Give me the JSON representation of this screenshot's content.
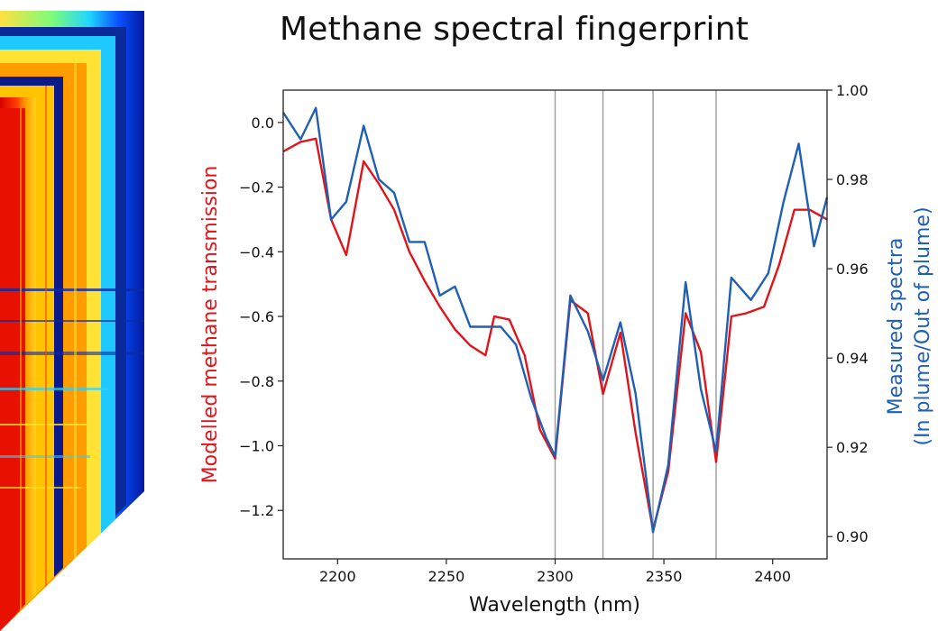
{
  "chart_data": {
    "type": "line",
    "title": "Methane spectral fingerprint",
    "xlabel": "Wavelength (nm)",
    "ylabel_left": "Modelled methane transmission",
    "ylabel_right_line1": "Measured spectra",
    "ylabel_right_line2": "(In plume/Out of plume)",
    "xlim": [
      2175,
      2425
    ],
    "ylim_left": [
      -1.35,
      0.1
    ],
    "ylim_right": [
      0.895,
      1.0
    ],
    "x_ticks": [
      2200,
      2250,
      2300,
      2350,
      2400
    ],
    "y_ticks_left": [
      0.0,
      -0.2,
      -0.4,
      -0.6,
      -0.8,
      -1.0,
      -1.2
    ],
    "y_ticks_left_labels": [
      "0.0",
      "−0.2",
      "−0.4",
      "−0.6",
      "−0.8",
      "−1.0",
      "−1.2"
    ],
    "y_ticks_right": [
      1.0,
      0.98,
      0.96,
      0.94,
      0.92,
      0.9
    ],
    "y_ticks_right_labels": [
      "1.00",
      "0.98",
      "0.96",
      "0.94",
      "0.92",
      "0.90"
    ],
    "vertical_lines": [
      2300,
      2322,
      2345,
      2374
    ],
    "grid": false,
    "series": [
      {
        "axis": "left",
        "color": "#e0151b",
        "points": [
          [
            2175,
            -0.09
          ],
          [
            2183,
            -0.06
          ],
          [
            2190,
            -0.05
          ],
          [
            2197,
            -0.3
          ],
          [
            2204,
            -0.41
          ],
          [
            2212,
            -0.12
          ],
          [
            2219,
            -0.19
          ],
          [
            2226,
            -0.27
          ],
          [
            2233,
            -0.4
          ],
          [
            2240,
            -0.49
          ],
          [
            2247,
            -0.57
          ],
          [
            2254,
            -0.64
          ],
          [
            2261,
            -0.69
          ],
          [
            2268,
            -0.72
          ],
          [
            2272,
            -0.6
          ],
          [
            2279,
            -0.61
          ],
          [
            2286,
            -0.72
          ],
          [
            2293,
            -0.95
          ],
          [
            2300,
            -1.04
          ],
          [
            2307,
            -0.55
          ],
          [
            2315,
            -0.59
          ],
          [
            2322,
            -0.84
          ],
          [
            2330,
            -0.65
          ],
          [
            2337,
            -0.96
          ],
          [
            2345,
            -1.26
          ],
          [
            2352,
            -1.08
          ],
          [
            2360,
            -0.59
          ],
          [
            2367,
            -0.71
          ],
          [
            2374,
            -1.05
          ],
          [
            2381,
            -0.6
          ],
          [
            2388,
            -0.59
          ],
          [
            2396,
            -0.57
          ],
          [
            2403,
            -0.44
          ],
          [
            2410,
            -0.27
          ],
          [
            2417,
            -0.27
          ],
          [
            2425,
            -0.3
          ]
        ]
      },
      {
        "axis": "right",
        "color": "#1f5fb4",
        "points": [
          [
            2175,
            0.995
          ],
          [
            2183,
            0.989
          ],
          [
            2190,
            0.996
          ],
          [
            2197,
            0.971
          ],
          [
            2204,
            0.975
          ],
          [
            2212,
            0.992
          ],
          [
            2219,
            0.98
          ],
          [
            2226,
            0.977
          ],
          [
            2233,
            0.966
          ],
          [
            2240,
            0.966
          ],
          [
            2247,
            0.954
          ],
          [
            2254,
            0.956
          ],
          [
            2261,
            0.947
          ],
          [
            2268,
            0.947
          ],
          [
            2275,
            0.947
          ],
          [
            2282,
            0.943
          ],
          [
            2289,
            0.931
          ],
          [
            2296,
            0.922
          ],
          [
            2300,
            0.918
          ],
          [
            2307,
            0.954
          ],
          [
            2315,
            0.946
          ],
          [
            2322,
            0.935
          ],
          [
            2330,
            0.948
          ],
          [
            2337,
            0.932
          ],
          [
            2345,
            0.901
          ],
          [
            2352,
            0.916
          ],
          [
            2360,
            0.957
          ],
          [
            2367,
            0.933
          ],
          [
            2374,
            0.919
          ],
          [
            2381,
            0.958
          ],
          [
            2390,
            0.953
          ],
          [
            2398,
            0.959
          ],
          [
            2405,
            0.975
          ],
          [
            2412,
            0.988
          ],
          [
            2419,
            0.965
          ],
          [
            2425,
            0.976
          ]
        ]
      }
    ]
  }
}
